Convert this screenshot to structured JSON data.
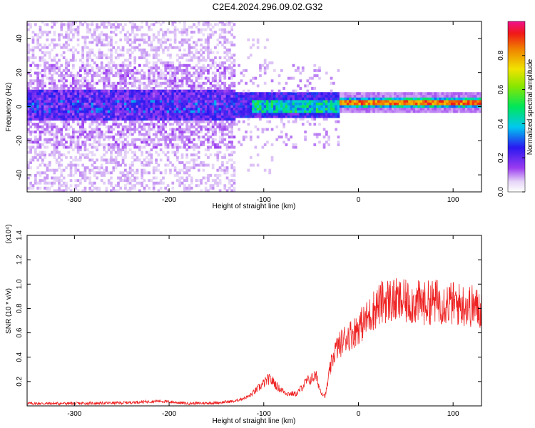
{
  "page": {
    "title": "C2E4.2024.296.09.02.G32"
  },
  "colors": {
    "snr_line": "#ee2222",
    "background": "#ffffff",
    "axis": "#000000"
  },
  "chart_data": [
    {
      "type": "heatmap",
      "title": "C2E4.2024.296.09.02.G32",
      "xlabel": "Height of straight line (km)",
      "ylabel": "Frequency (Hz)",
      "xlim": [
        -350,
        130
      ],
      "ylim": [
        -50,
        50
      ],
      "x_ticks": [
        -300,
        -200,
        -100,
        0,
        100
      ],
      "y_ticks": [
        -40,
        -20,
        0,
        20,
        40
      ],
      "colorbar": {
        "label": "Normalized spectral amplitude",
        "range": [
          0,
          1
        ],
        "ticks": [
          "0.0",
          "0.2",
          "0.4",
          "0.6",
          "0.8"
        ],
        "colormap": "rainbow (white-purple-blue-cyan-green-yellow-red-magenta)"
      },
      "ridge": {
        "description": "Signal concentrated near 0 Hz; diffuse noise band for heights below about -130 km, strong coherent line near +2 Hz above about -20 km",
        "noise_extent_hz": [
          -50,
          50
        ],
        "noise_x_range": [
          -350,
          -130
        ],
        "core_band_hz": [
          -8,
          8
        ],
        "strong_line_hz": 2,
        "strong_line_x_range": [
          -20,
          130
        ]
      },
      "grid": false
    },
    {
      "type": "line",
      "xlabel": "Height of straight line (km)",
      "ylabel": "SNR (10 * v/v)",
      "y_multiplier": "(x10⁴)",
      "xlim": [
        -350,
        130
      ],
      "ylim": [
        0,
        1.4
      ],
      "x_ticks": [
        -300,
        -200,
        -100,
        0,
        100
      ],
      "y_ticks": [
        "0.2",
        "0.4",
        "0.6",
        "0.8",
        "1.0",
        "1.2",
        "1.4"
      ],
      "grid": false,
      "series": [
        {
          "x": [
            -350,
            -300,
            -250,
            -210,
            -180,
            -150,
            -130,
            -115,
            -105,
            -95,
            -90,
            -85,
            -75,
            -65,
            -55,
            -50,
            -45,
            -40,
            -35,
            -30,
            -25,
            -20,
            -15,
            -10,
            -5,
            0,
            5,
            10,
            15,
            20,
            25,
            30,
            40,
            50,
            60,
            70,
            80,
            90,
            100,
            110,
            120,
            125,
            130
          ],
          "y": [
            0.02,
            0.02,
            0.025,
            0.04,
            0.02,
            0.025,
            0.04,
            0.08,
            0.15,
            0.22,
            0.2,
            0.15,
            0.1,
            0.1,
            0.2,
            0.22,
            0.25,
            0.12,
            0.08,
            0.3,
            0.45,
            0.5,
            0.55,
            0.58,
            0.6,
            0.65,
            0.68,
            0.72,
            0.78,
            0.82,
            0.85,
            0.87,
            0.86,
            0.85,
            0.85,
            0.84,
            0.86,
            0.85,
            0.84,
            0.83,
            0.82,
            0.8,
            0.8
          ]
        }
      ]
    }
  ]
}
